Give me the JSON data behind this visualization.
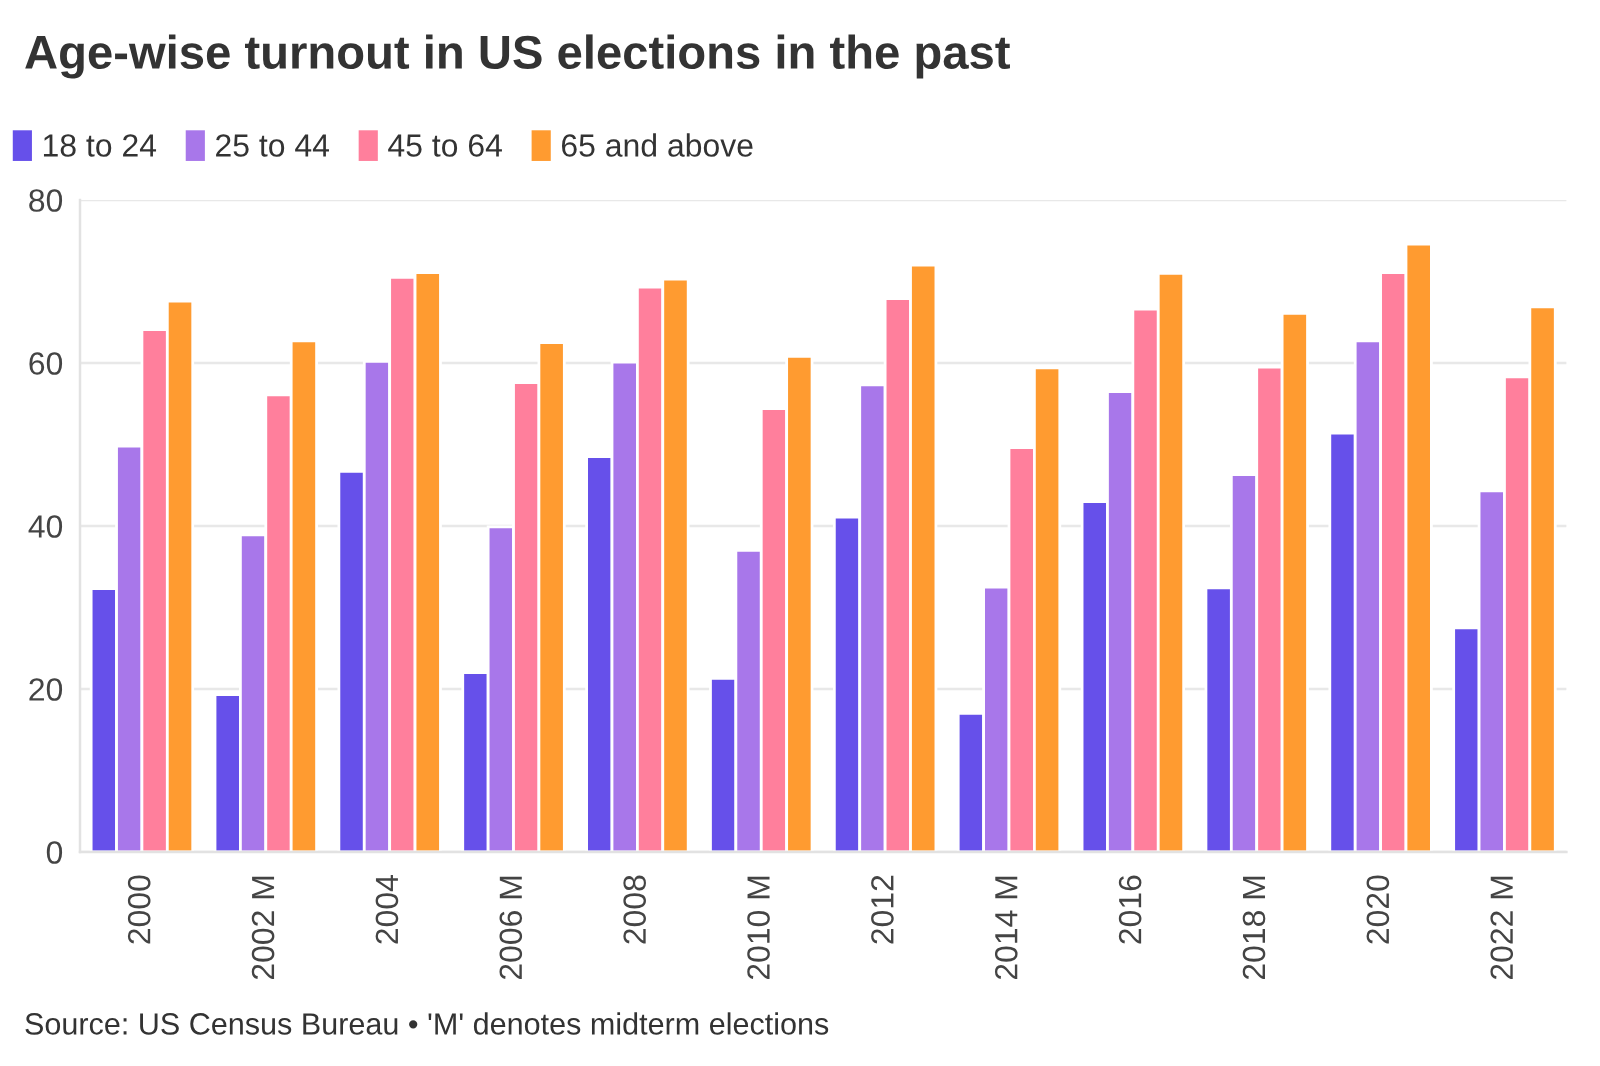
{
  "chart_data": {
    "type": "bar",
    "title": "Age-wise turnout in US elections in the past",
    "categories": [
      "2000",
      "2002 M",
      "2004",
      "2006 M",
      "2008",
      "2010 M",
      "2012",
      "2014 M",
      "2016",
      "2018 M",
      "2020",
      "2022 M"
    ],
    "series": [
      {
        "name": "18 to 24",
        "color": "#6650ea",
        "values": [
          32.3,
          19.3,
          46.7,
          22.0,
          48.5,
          21.3,
          41.1,
          17.0,
          43.0,
          32.4,
          51.4,
          27.5
        ]
      },
      {
        "name": "25 to 44",
        "color": "#a877ea",
        "values": [
          49.8,
          38.9,
          60.2,
          39.9,
          60.1,
          37.0,
          57.3,
          32.5,
          56.5,
          46.3,
          62.7,
          44.3
        ]
      },
      {
        "name": "45 to 64",
        "color": "#ff7f9c",
        "values": [
          64.1,
          56.1,
          70.5,
          57.6,
          69.3,
          54.4,
          67.9,
          49.6,
          66.6,
          59.5,
          71.1,
          58.3
        ]
      },
      {
        "name": "65 and above",
        "color": "#ff9b30",
        "values": [
          67.6,
          62.7,
          71.1,
          62.5,
          70.3,
          60.8,
          72.0,
          59.4,
          71.0,
          66.1,
          74.6,
          66.9
        ]
      }
    ],
    "ylim": [
      0,
      80
    ],
    "yticks": [
      0,
      20,
      40,
      60,
      80
    ],
    "grid": "y",
    "legend": "top left",
    "annotations": [
      "Source: US Census Bureau • 'M' denotes midterm elections"
    ]
  }
}
